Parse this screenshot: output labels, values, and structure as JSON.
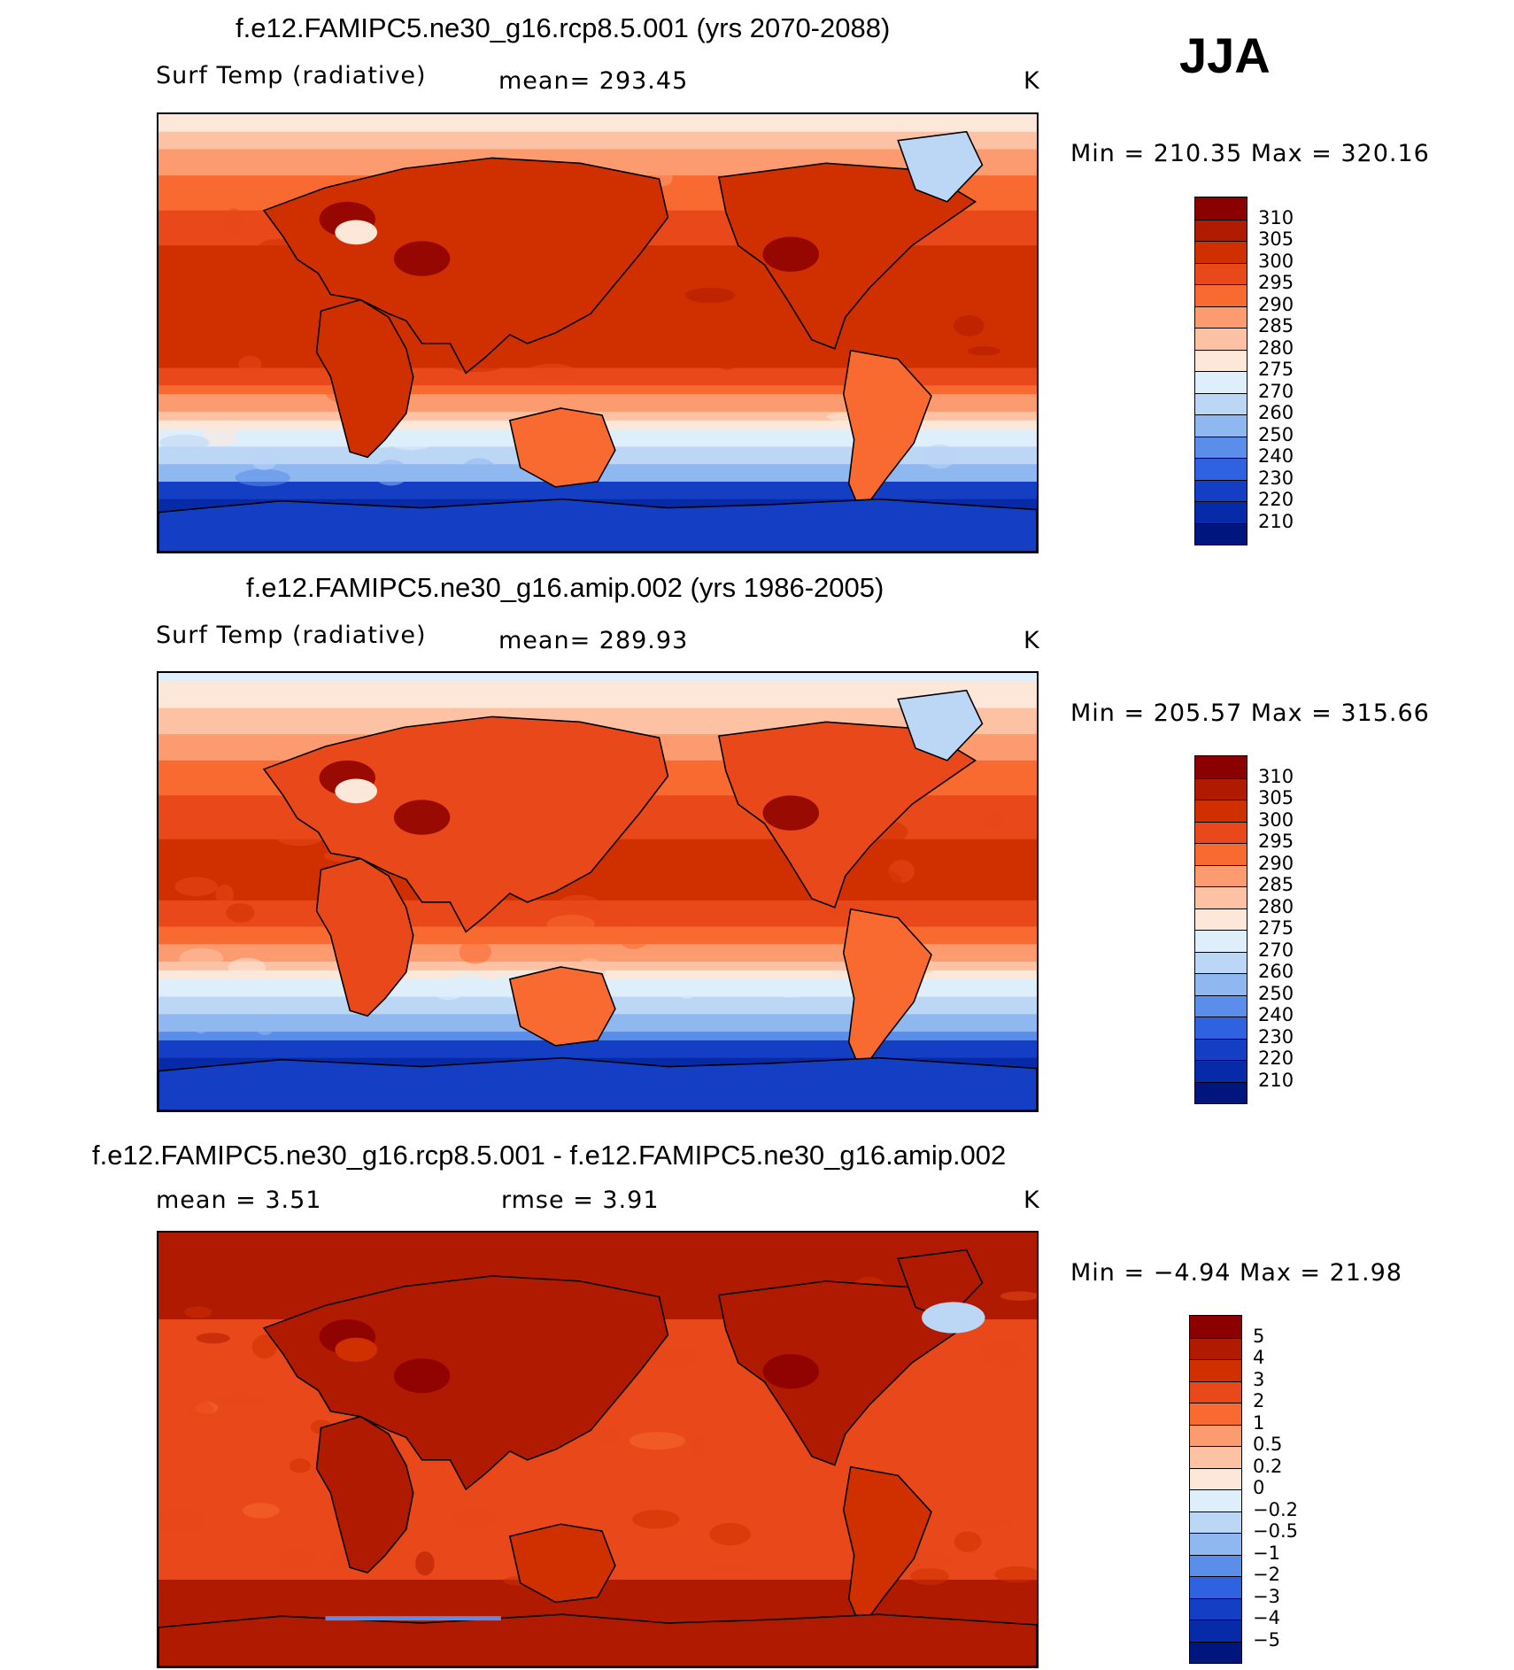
{
  "header": {
    "season": "JJA"
  },
  "panels": [
    {
      "title": "f.e12.FAMIPC5.ne30_g16.rcp8.5.001 (yrs 2070-2088)",
      "variable": "Surf Temp (radiative)",
      "stat_text": "mean= 293.45",
      "units": "K",
      "minmax": "Min = 210.35 Max = 320.16",
      "kind": "abs",
      "anomaly": 3.5
    },
    {
      "title": "f.e12.FAMIPC5.ne30_g16.amip.002 (yrs 1986-2005)",
      "variable": "Surf Temp (radiative)",
      "stat_text": "mean= 289.93",
      "units": "K",
      "minmax": "Min = 205.57 Max = 315.66",
      "kind": "abs",
      "anomaly": 0
    },
    {
      "title": "f.e12.FAMIPC5.ne30_g16.rcp8.5.001 - f.e12.FAMIPC5.ne30_g16.amip.002",
      "mean_text": "mean =    3.51",
      "rmse_text": "rmse =    3.91",
      "units": "K",
      "minmax": "Min =  −4.94 Max =   21.98",
      "kind": "diff",
      "anomaly": 0
    }
  ],
  "colorbars": {
    "abs": {
      "labels": [
        "310",
        "305",
        "300",
        "295",
        "290",
        "285",
        "280",
        "275",
        "270",
        "260",
        "250",
        "240",
        "230",
        "220",
        "210"
      ],
      "levels": [
        310,
        305,
        300,
        295,
        290,
        285,
        280,
        275,
        270,
        260,
        250,
        240,
        230,
        220,
        210
      ],
      "colors": [
        "#8b0000",
        "#b01a00",
        "#d03000",
        "#e8481a",
        "#f86a30",
        "#fc9a70",
        "#fdc2a4",
        "#fde7d8",
        "#dfeefb",
        "#bcd6f6",
        "#8fb8f0",
        "#5a8eea",
        "#2e62e0",
        "#143fc4",
        "#062aa8",
        "#00157e"
      ]
    },
    "diff": {
      "labels": [
        "5",
        "4",
        "3",
        "2",
        "1",
        "0.5",
        "0.2",
        "0",
        "−0.2",
        "−0.5",
        "−1",
        "−2",
        "−3",
        "−4",
        "−5"
      ],
      "levels": [
        5,
        4,
        3,
        2,
        1,
        0.5,
        0.2,
        0,
        -0.2,
        -0.5,
        -1,
        -2,
        -3,
        -4,
        -5
      ],
      "colors": [
        "#8b0000",
        "#b01a00",
        "#d03000",
        "#e8481a",
        "#f86a30",
        "#fc9a70",
        "#fdc2a4",
        "#fde7d8",
        "#dfeefb",
        "#bcd6f6",
        "#8fb8f0",
        "#5a8eea",
        "#2e62e0",
        "#143fc4",
        "#062aa8",
        "#00157e"
      ]
    }
  }
}
